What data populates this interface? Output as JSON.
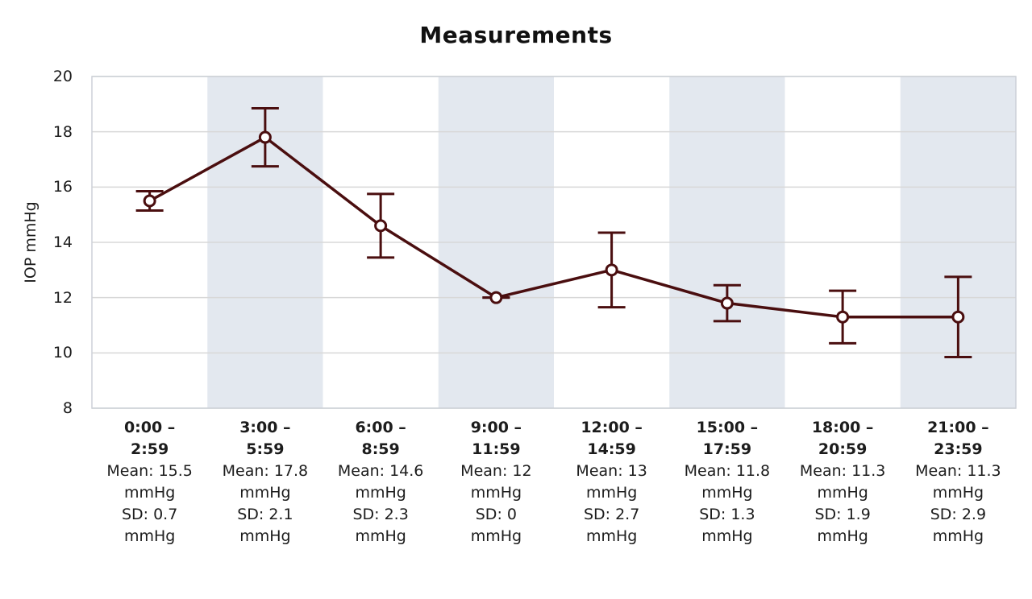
{
  "chart_data": {
    "type": "line",
    "title": "Measurements",
    "ylabel": "IOP mmHg",
    "unit": "mmHg",
    "ylim": [
      8,
      20
    ],
    "yticks": [
      20,
      18,
      16,
      14,
      12,
      10,
      8
    ],
    "grid": "horizontal",
    "legend": "none",
    "error_bars": "mean plus/minus SD/2 with caps",
    "marker": "open-circle",
    "band_pattern": "alternating columns shaded, 2nd/4th/6th/8th",
    "categories": [
      "0:00 – 2:59",
      "3:00 – 5:59",
      "6:00 – 8:59",
      "9:00 – 11:59",
      "12:00 – 14:59",
      "15:00 – 17:59",
      "18:00 – 20:59",
      "21:00 – 23:59"
    ],
    "series": [
      {
        "name": "IOP",
        "means": [
          15.5,
          17.8,
          14.6,
          12,
          13,
          11.8,
          11.3,
          11.3
        ],
        "sds": [
          0.7,
          2.1,
          2.3,
          0,
          2.7,
          1.3,
          1.9,
          2.9
        ]
      }
    ],
    "labels": {
      "mean_prefix": "Mean: ",
      "sd_prefix": "SD: "
    },
    "colors": {
      "line": "#4a0e0f",
      "marker_fill": "#ffffff",
      "band": "#e3e8ef",
      "gridline": "#d8d8d8",
      "plot_border": "#cdd1d8",
      "text": "#1c1c1c",
      "background": "#ffffff"
    }
  }
}
